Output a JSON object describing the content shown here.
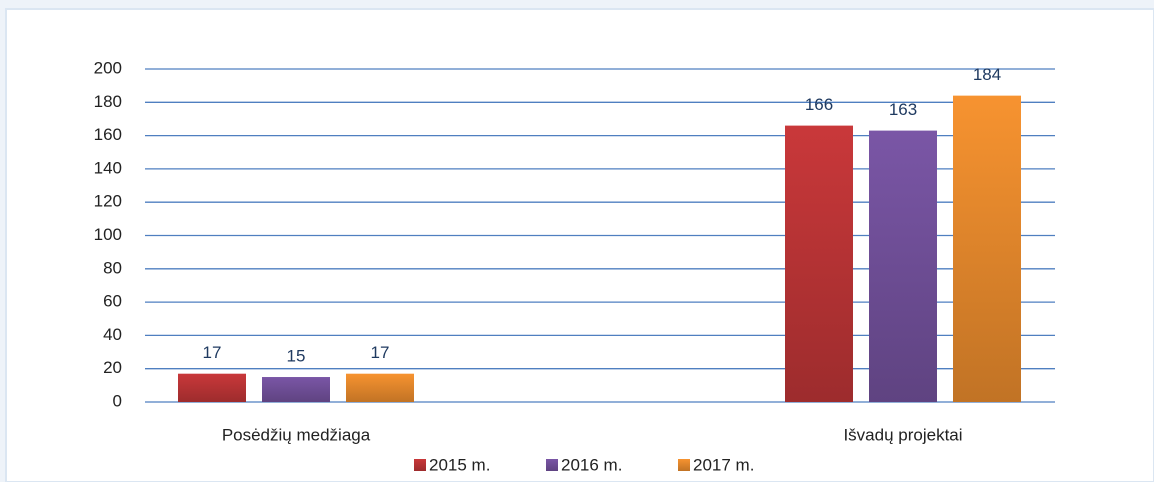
{
  "chart_data": {
    "type": "bar",
    "categories": [
      "Posėdžių medžiaga",
      "Išvadų projektai"
    ],
    "series": [
      {
        "name": "2015 m.",
        "color": "#c9383a",
        "values": [
          17,
          166
        ]
      },
      {
        "name": "2016 m.",
        "color": "#7a56a6",
        "values": [
          15,
          163
        ]
      },
      {
        "name": "2017 m.",
        "color": "#f79330",
        "values": [
          17,
          184
        ]
      }
    ],
    "ylim": [
      0,
      200
    ],
    "yticks": [
      0,
      20,
      40,
      60,
      80,
      100,
      120,
      140,
      160,
      180,
      200
    ],
    "grid": true,
    "legend": "bottom"
  }
}
